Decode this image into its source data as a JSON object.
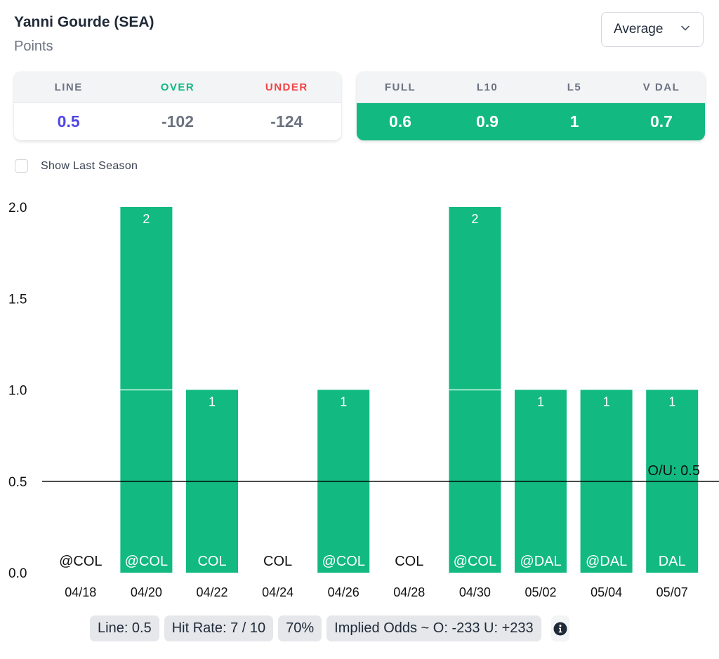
{
  "header": {
    "player": "Yanni Gourde (SEA)",
    "stat": "Points"
  },
  "select": {
    "value": "Average",
    "icon": "chevron-down-icon"
  },
  "odds_card": {
    "headers": [
      {
        "label": "LINE",
        "color": "#6b7280"
      },
      {
        "label": "OVER",
        "color": "#10b981"
      },
      {
        "label": "UNDER",
        "color": "#ef4444"
      }
    ],
    "values": [
      {
        "value": "0.5",
        "color": "#4f46e5"
      },
      {
        "value": "-102",
        "color": "#6b7280"
      },
      {
        "value": "-124",
        "color": "#6b7280"
      }
    ]
  },
  "avg_card": {
    "headers": [
      "FULL",
      "L10",
      "L5",
      "V DAL"
    ],
    "values": [
      "0.6",
      "0.9",
      "1",
      "0.7"
    ],
    "accent": "#12b981"
  },
  "show_last_season": {
    "label": "Show Last Season",
    "checked": false
  },
  "chart_data": {
    "type": "bar",
    "categories": [
      "04/18",
      "04/20",
      "04/22",
      "04/24",
      "04/26",
      "04/28",
      "04/30",
      "05/02",
      "05/04",
      "05/07"
    ],
    "opponents": [
      "@COL",
      "@COL",
      "COL",
      "COL",
      "@COL",
      "COL",
      "@COL",
      "@DAL",
      "@DAL",
      "DAL"
    ],
    "values": [
      0,
      2,
      1,
      0,
      1,
      0,
      2,
      1,
      1,
      1
    ],
    "ylim": [
      0,
      2
    ],
    "yticks": [
      "0.0",
      "0.5",
      "1.0",
      "1.5",
      "2.0"
    ],
    "reference_line": {
      "value": 0.5,
      "label": "O/U: 0.5"
    },
    "bar_color": "#12b981",
    "grid": false,
    "title": "",
    "xlabel": "",
    "ylabel": ""
  },
  "summary": {
    "line": "Line: 0.5",
    "hit_rate": "Hit Rate: 7 / 10",
    "percent": "70%",
    "implied_odds": "Implied Odds ~ O: -233 U: +233"
  }
}
